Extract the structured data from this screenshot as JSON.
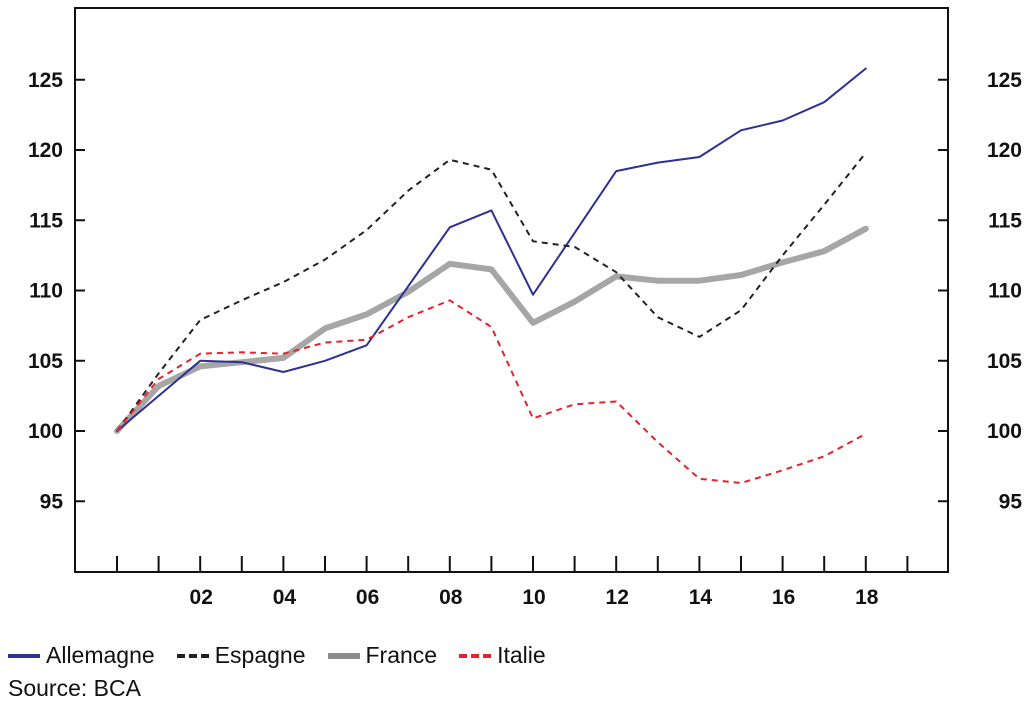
{
  "chart_data": {
    "type": "line",
    "title": "",
    "xlabel": "",
    "ylabel": "",
    "x": [
      2000,
      2001,
      2002,
      2003,
      2004,
      2005,
      2006,
      2007,
      2008,
      2009,
      2010,
      2011,
      2012,
      2013,
      2014,
      2015,
      2016,
      2017,
      2018
    ],
    "x_tick_labels": [
      "02",
      "04",
      "06",
      "08",
      "10",
      "12",
      "14",
      "16",
      "18"
    ],
    "y_ticks": [
      95,
      100,
      105,
      110,
      115,
      120,
      125
    ],
    "ylim": [
      90,
      130
    ],
    "xlim": [
      1999,
      2020
    ],
    "grid": false,
    "right_axis_mirrors_left": true,
    "series": [
      {
        "name": "Allemagne",
        "color": "#2e3192",
        "style": "solid",
        "width": 2,
        "x": [
          2000,
          2002,
          2003,
          2004,
          2005,
          2006,
          2008,
          2009,
          2010,
          2012,
          2013,
          2014,
          2015,
          2016,
          2017,
          2018
        ],
        "values": [
          100,
          105,
          104.9,
          104.2,
          105,
          106.1,
          114.5,
          115.7,
          109.7,
          118.5,
          119.1,
          119.5,
          121.4,
          122.1,
          123.4,
          125.8
        ]
      },
      {
        "name": "Espagne",
        "color": "#222222",
        "style": "dashed",
        "width": 2,
        "x": [
          2000,
          2001,
          2002,
          2003,
          2004,
          2005,
          2006,
          2007,
          2008,
          2009,
          2010,
          2011,
          2012,
          2013,
          2014,
          2015,
          2016,
          2017,
          2018
        ],
        "values": [
          100,
          104.1,
          107.9,
          109.3,
          110.6,
          112.2,
          114.3,
          117.1,
          119.3,
          118.6,
          113.5,
          113.1,
          111.3,
          108.1,
          106.7,
          108.6,
          112.5,
          116.1,
          119.8
        ]
      },
      {
        "name": "France",
        "color": "#a6a6a6",
        "style": "solid",
        "width": 6,
        "x": [
          2000,
          2001,
          2002,
          2003,
          2004,
          2005,
          2006,
          2007,
          2008,
          2009,
          2010,
          2011,
          2012,
          2013,
          2014,
          2015,
          2016,
          2017,
          2018
        ],
        "values": [
          100,
          103.2,
          104.6,
          104.9,
          105.2,
          107.3,
          108.3,
          109.9,
          111.9,
          111.5,
          107.7,
          109.2,
          111,
          110.7,
          110.7,
          111.1,
          112,
          112.8,
          114.4
        ]
      },
      {
        "name": "Italie",
        "color": "#e8212a",
        "style": "dashed",
        "width": 2,
        "x": [
          2000,
          2001,
          2002,
          2003,
          2004,
          2005,
          2006,
          2007,
          2008,
          2009,
          2010,
          2011,
          2012,
          2013,
          2014,
          2015,
          2016,
          2017,
          2018
        ],
        "values": [
          100,
          103.7,
          105.5,
          105.6,
          105.5,
          106.3,
          106.5,
          108.1,
          109.3,
          107.4,
          100.9,
          101.9,
          102.1,
          99.2,
          96.6,
          96.3,
          97.2,
          98.2,
          99.8
        ]
      }
    ]
  },
  "legend": {
    "items": [
      {
        "label": "Allemagne",
        "color": "#2e3192",
        "style": "solid"
      },
      {
        "label": "Espagne",
        "color": "#222222",
        "style": "dashed"
      },
      {
        "label": "France",
        "color": "#8c8c8c",
        "style": "thick"
      },
      {
        "label": "Italie",
        "color": "#e8212a",
        "style": "dashed"
      }
    ]
  },
  "source": "Source: BCA"
}
